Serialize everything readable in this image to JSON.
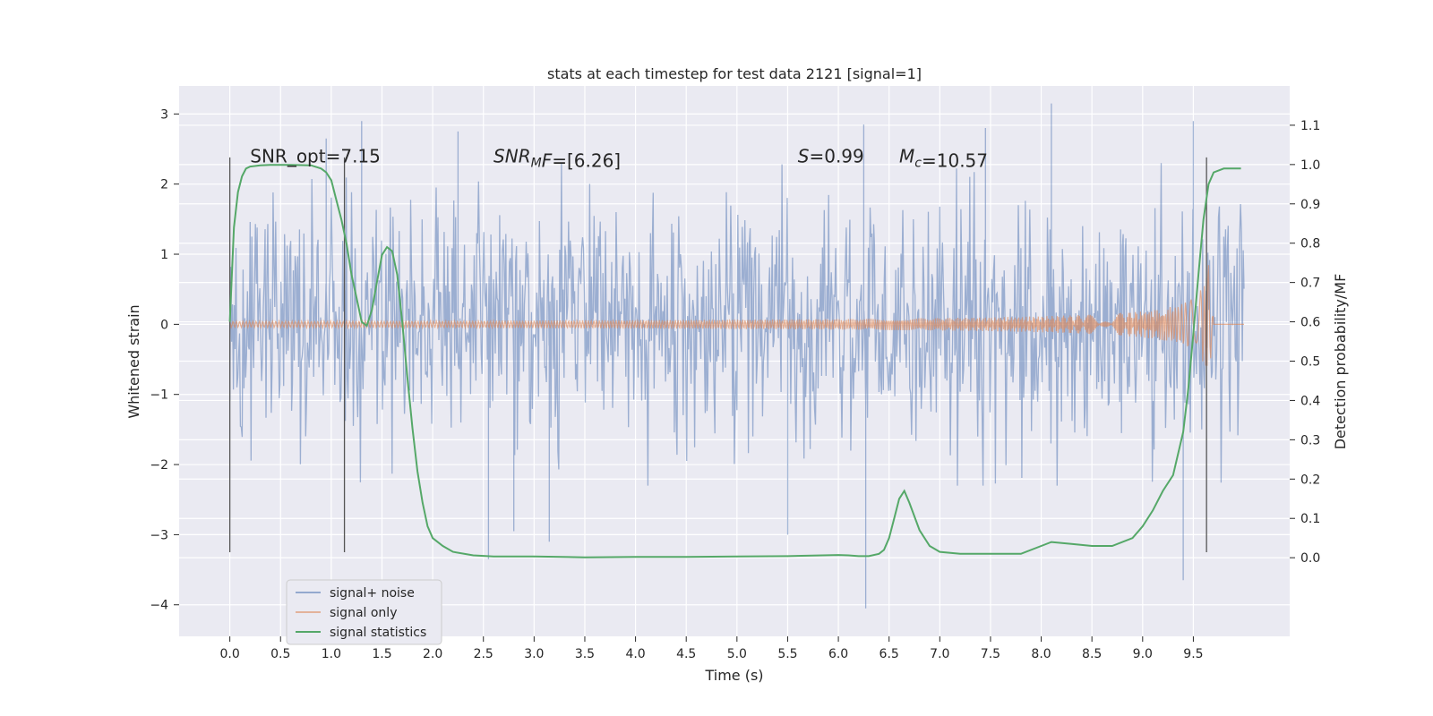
{
  "chart_data": {
    "type": "line",
    "title": "stats at each timestep for test data 2121 [signal=1]",
    "xlabel": "Time (s)",
    "ylabel": "Whitened strain",
    "y2label": "Detection probability/MF",
    "xlim": [
      -0.5,
      10.45
    ],
    "ylim": [
      -4.45,
      3.4
    ],
    "y2lim": [
      -0.2,
      1.2
    ],
    "x_ticks": [
      "0.0",
      "0.5",
      "1.0",
      "1.5",
      "2.0",
      "2.5",
      "3.0",
      "3.5",
      "4.0",
      "4.5",
      "5.0",
      "5.5",
      "6.0",
      "6.5",
      "7.0",
      "7.5",
      "8.0",
      "8.5",
      "9.0",
      "9.5"
    ],
    "y_ticks": [
      "3",
      "2",
      "1",
      "0",
      "−1",
      "−2",
      "−3",
      "−4"
    ],
    "y2_ticks": [
      "1.1",
      "1.0",
      "0.9",
      "0.8",
      "0.7",
      "0.6",
      "0.5",
      "0.4",
      "0.3",
      "0.2",
      "0.1",
      "0.0"
    ],
    "grid": true,
    "legend_position": "lower-left",
    "annotations": [
      {
        "x": 0.2,
        "text": "SNR_opt=7.15"
      },
      {
        "x": 2.6,
        "text_parts": [
          {
            "t": "SNR",
            "italic": true
          },
          {
            "t": "M",
            "italic": true,
            "sub": true
          },
          {
            "t": "F",
            "italic": true
          },
          {
            "t": "=[6.26]",
            "italic": false
          }
        ]
      },
      {
        "x": 5.6,
        "text_parts": [
          {
            "t": "S",
            "italic": true
          },
          {
            "t": "=0.99",
            "italic": false
          }
        ]
      },
      {
        "x": 6.6,
        "text_parts": [
          {
            "t": "M",
            "italic": true
          },
          {
            "t": "c",
            "italic": true,
            "sub": true
          },
          {
            "t": "=10.57",
            "italic": false
          }
        ]
      }
    ],
    "annotation_y": 2.4,
    "vertical_lines": [
      0.0,
      1.13,
      9.63
    ],
    "vertical_line_range": [
      -3.25,
      2.38
    ],
    "series": [
      {
        "name": "signal+ noise",
        "color": "#4c72b0",
        "kind": "noise",
        "x_range": [
          0.0,
          10.0
        ],
        "typical_amplitude": 1.2,
        "peak_values": [
          {
            "x": 0.95,
            "y": 2.65
          },
          {
            "x": 1.3,
            "y": 2.9
          },
          {
            "x": 2.25,
            "y": 2.75
          },
          {
            "x": 2.55,
            "y": -3.35
          },
          {
            "x": 2.8,
            "y": -2.95
          },
          {
            "x": 3.15,
            "y": -3.1
          },
          {
            "x": 5.5,
            "y": -3.0
          },
          {
            "x": 6.25,
            "y": 2.85
          },
          {
            "x": 6.27,
            "y": -4.05
          },
          {
            "x": 7.45,
            "y": 2.8
          },
          {
            "x": 8.1,
            "y": 3.15
          },
          {
            "x": 9.4,
            "y": -3.65
          },
          {
            "x": 9.5,
            "y": 2.9
          }
        ]
      },
      {
        "name": "signal only",
        "color": "#dd8452",
        "kind": "chirp",
        "x_range": [
          0.0,
          10.0
        ],
        "merger_x": 9.65,
        "peak_amplitude": 0.85
      },
      {
        "name": "signal statistics",
        "color": "#55a868",
        "kind": "line",
        "axis": "right",
        "x": [
          0.0,
          0.04,
          0.08,
          0.12,
          0.16,
          0.2,
          0.3,
          0.4,
          0.6,
          0.8,
          0.9,
          0.95,
          1.0,
          1.05,
          1.1,
          1.15,
          1.2,
          1.25,
          1.3,
          1.35,
          1.4,
          1.45,
          1.5,
          1.55,
          1.6,
          1.65,
          1.7,
          1.75,
          1.8,
          1.85,
          1.9,
          1.95,
          2.0,
          2.1,
          2.2,
          2.4,
          2.6,
          3.0,
          3.5,
          4.0,
          4.5,
          5.0,
          5.5,
          6.0,
          6.1,
          6.2,
          6.3,
          6.4,
          6.45,
          6.5,
          6.55,
          6.6,
          6.65,
          6.7,
          6.8,
          6.9,
          7.0,
          7.2,
          7.5,
          7.8,
          8.0,
          8.1,
          8.3,
          8.5,
          8.7,
          8.9,
          9.0,
          9.1,
          9.2,
          9.3,
          9.4,
          9.45,
          9.5,
          9.55,
          9.6,
          9.65,
          9.7,
          9.8,
          9.9,
          9.97
        ],
        "y": [
          0.6,
          0.84,
          0.93,
          0.97,
          0.99,
          0.995,
          0.998,
          0.999,
          0.999,
          0.998,
          0.99,
          0.98,
          0.96,
          0.91,
          0.86,
          0.8,
          0.72,
          0.66,
          0.6,
          0.59,
          0.63,
          0.7,
          0.77,
          0.79,
          0.78,
          0.72,
          0.6,
          0.46,
          0.33,
          0.22,
          0.14,
          0.08,
          0.05,
          0.03,
          0.015,
          0.006,
          0.003,
          0.003,
          0.001,
          0.002,
          0.002,
          0.003,
          0.004,
          0.007,
          0.006,
          0.004,
          0.004,
          0.01,
          0.02,
          0.05,
          0.1,
          0.15,
          0.17,
          0.14,
          0.07,
          0.03,
          0.015,
          0.01,
          0.01,
          0.01,
          0.03,
          0.04,
          0.035,
          0.03,
          0.03,
          0.05,
          0.08,
          0.12,
          0.17,
          0.21,
          0.32,
          0.43,
          0.57,
          0.72,
          0.86,
          0.95,
          0.98,
          0.99,
          0.99,
          0.99
        ]
      }
    ]
  }
}
